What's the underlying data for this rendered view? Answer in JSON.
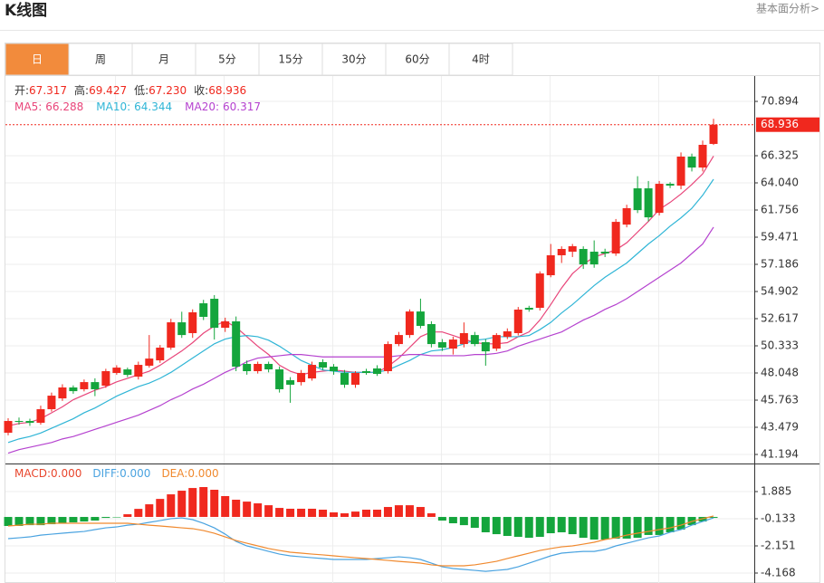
{
  "header": {
    "title": "K线图",
    "link": "基本面分析>"
  },
  "tabs": [
    "日",
    "周",
    "月",
    "5分",
    "15分",
    "30分",
    "60分",
    "4时"
  ],
  "active_tab": 0,
  "chart_data": [
    {
      "type": "candlestick",
      "up_color": "#f0281e",
      "down_color": "#14a53c",
      "readout": [
        {
          "name": "开:",
          "value": 67.317
        },
        {
          "name": "高:",
          "value": 69.427
        },
        {
          "name": "低:",
          "value": 67.23,
          "label": "67.230"
        },
        {
          "name": "收:",
          "value": 68.936
        }
      ],
      "ohlc": [
        [
          43.02,
          44.24,
          42.8,
          44.01
        ],
        [
          44.01,
          44.3,
          43.7,
          43.93
        ],
        [
          44.01,
          44.2,
          43.6,
          43.86
        ],
        [
          43.86,
          45.3,
          43.7,
          45.0
        ],
        [
          45.0,
          46.4,
          44.8,
          46.14
        ],
        [
          45.91,
          47.1,
          45.7,
          46.83
        ],
        [
          46.83,
          47.0,
          46.3,
          46.52
        ],
        [
          46.68,
          47.5,
          46.5,
          47.28
        ],
        [
          47.28,
          47.6,
          46.1,
          46.68
        ],
        [
          46.98,
          48.4,
          46.8,
          48.2
        ],
        [
          48.05,
          48.7,
          47.9,
          48.5
        ],
        [
          48.35,
          48.5,
          47.7,
          47.89
        ],
        [
          47.74,
          49.0,
          47.5,
          48.73
        ],
        [
          48.66,
          51.24,
          48.5,
          49.26
        ],
        [
          49.11,
          50.4,
          48.9,
          50.18
        ],
        [
          50.18,
          52.6,
          50.0,
          52.31
        ],
        [
          52.31,
          53.2,
          51.0,
          51.24
        ],
        [
          51.4,
          53.4,
          51.0,
          53.15
        ],
        [
          53.91,
          54.2,
          52.5,
          52.77
        ],
        [
          54.29,
          54.6,
          50.86,
          51.85
        ],
        [
          51.85,
          52.7,
          51.5,
          52.39
        ],
        [
          52.39,
          52.8,
          48.2,
          48.58
        ],
        [
          48.81,
          49.1,
          47.9,
          48.2
        ],
        [
          48.2,
          49.0,
          48.0,
          48.81
        ],
        [
          48.81,
          49.0,
          48.1,
          48.35
        ],
        [
          48.35,
          48.6,
          46.4,
          46.68
        ],
        [
          47.44,
          47.7,
          45.54,
          47.06
        ],
        [
          47.28,
          48.3,
          47.0,
          48.05
        ],
        [
          47.59,
          49.0,
          47.4,
          48.73
        ],
        [
          48.96,
          49.2,
          48.3,
          48.5
        ],
        [
          48.58,
          48.8,
          47.9,
          48.2
        ],
        [
          48.05,
          48.3,
          46.8,
          47.06
        ],
        [
          47.06,
          48.2,
          46.8,
          48.05
        ],
        [
          48.2,
          48.4,
          47.9,
          48.05
        ],
        [
          48.43,
          48.7,
          47.8,
          47.97
        ],
        [
          48.2,
          50.7,
          48.0,
          50.48
        ],
        [
          50.48,
          51.5,
          50.3,
          51.24
        ],
        [
          51.24,
          53.4,
          51.0,
          53.22
        ],
        [
          53.22,
          54.3,
          51.8,
          52.01
        ],
        [
          52.16,
          52.4,
          50.2,
          50.48
        ],
        [
          50.64,
          50.9,
          49.9,
          50.18
        ],
        [
          50.1,
          51.1,
          49.6,
          50.86
        ],
        [
          50.48,
          52.3,
          50.2,
          51.4
        ],
        [
          51.24,
          51.5,
          50.3,
          50.48
        ],
        [
          50.64,
          50.9,
          48.66,
          49.87
        ],
        [
          50.1,
          51.4,
          49.9,
          51.24
        ],
        [
          51.09,
          51.8,
          50.9,
          51.55
        ],
        [
          51.4,
          53.6,
          51.2,
          53.38
        ],
        [
          53.53,
          53.7,
          53.2,
          53.38
        ],
        [
          53.53,
          56.6,
          53.3,
          56.42
        ],
        [
          56.27,
          58.9,
          56.1,
          57.95
        ],
        [
          57.95,
          58.7,
          57.3,
          58.48
        ],
        [
          58.25,
          58.9,
          57.8,
          58.71
        ],
        [
          58.48,
          58.7,
          56.8,
          57.18
        ],
        [
          58.25,
          59.2,
          56.9,
          57.18
        ],
        [
          58.25,
          58.5,
          57.8,
          58.1
        ],
        [
          58.1,
          61.0,
          57.9,
          60.76
        ],
        [
          60.53,
          62.2,
          60.3,
          61.91
        ],
        [
          63.58,
          64.6,
          61.5,
          61.75
        ],
        [
          63.58,
          64.2,
          60.8,
          61.14
        ],
        [
          61.52,
          64.2,
          61.3,
          63.96
        ],
        [
          63.96,
          64.1,
          63.6,
          63.81
        ],
        [
          63.81,
          66.6,
          63.5,
          66.25
        ],
        [
          66.25,
          66.5,
          65.0,
          65.33
        ],
        [
          65.33,
          67.6,
          65.0,
          67.24
        ],
        [
          67.317,
          69.427,
          67.23,
          68.936
        ]
      ],
      "series": [
        {
          "name": "MA5:",
          "color": "#e8457a",
          "values": [
            43.6,
            43.8,
            43.9,
            44.2,
            44.7,
            45.2,
            45.8,
            46.2,
            46.6,
            46.9,
            47.3,
            47.6,
            47.9,
            48.2,
            48.7,
            49.3,
            49.9,
            50.6,
            51.4,
            52.0,
            52.4,
            51.9,
            51.1,
            50.3,
            49.6,
            48.7,
            48.2,
            47.9,
            48.1,
            48.2,
            48.3,
            48.2,
            48.1,
            48.1,
            48.1,
            48.6,
            49.3,
            50.2,
            51.1,
            51.5,
            51.5,
            51.2,
            50.9,
            50.6,
            50.5,
            50.5,
            50.6,
            51.1,
            51.5,
            52.5,
            53.8,
            55.2,
            56.4,
            57.2,
            57.8,
            58.1,
            58.4,
            59.0,
            59.9,
            60.8,
            61.8,
            62.4,
            63.1,
            63.9,
            64.8,
            66.288
          ]
        },
        {
          "name": "MA10:",
          "color": "#2fb5d6",
          "values": [
            42.2,
            42.5,
            42.7,
            43.0,
            43.4,
            43.8,
            44.2,
            44.7,
            45.1,
            45.6,
            46.1,
            46.5,
            46.9,
            47.2,
            47.6,
            48.1,
            48.7,
            49.3,
            49.9,
            50.5,
            50.9,
            51.1,
            51.2,
            51.1,
            50.8,
            50.3,
            49.7,
            49.1,
            48.7,
            48.3,
            48.2,
            48.1,
            48.1,
            48.1,
            48.1,
            48.3,
            48.7,
            49.1,
            49.6,
            49.9,
            50.0,
            50.2,
            50.5,
            50.8,
            50.9,
            51.1,
            51.1,
            51.1,
            51.2,
            51.7,
            52.3,
            53.1,
            53.8,
            54.6,
            55.4,
            56.1,
            56.7,
            57.3,
            58.1,
            58.9,
            59.6,
            60.4,
            61.1,
            61.9,
            63.0,
            64.344
          ]
        },
        {
          "name": "MA20:",
          "color": "#b542cf",
          "values": [
            41.3,
            41.6,
            41.8,
            42.0,
            42.2,
            42.5,
            42.7,
            43.0,
            43.3,
            43.6,
            43.9,
            44.2,
            44.5,
            44.9,
            45.3,
            45.8,
            46.2,
            46.7,
            47.1,
            47.6,
            48.1,
            48.5,
            49.0,
            49.3,
            49.4,
            49.5,
            49.6,
            49.6,
            49.5,
            49.4,
            49.4,
            49.4,
            49.4,
            49.4,
            49.4,
            49.4,
            49.5,
            49.6,
            49.6,
            49.5,
            49.5,
            49.5,
            49.5,
            49.6,
            49.6,
            49.7,
            49.9,
            50.3,
            50.6,
            50.9,
            51.2,
            51.5,
            52.0,
            52.5,
            52.9,
            53.4,
            53.8,
            54.3,
            54.9,
            55.5,
            56.1,
            56.7,
            57.3,
            58.1,
            58.9,
            60.317
          ]
        }
      ],
      "ylim": [
        40.433,
        73.026
      ],
      "yticks": [
        70.894,
        66.325,
        {
          "value": 64.04,
          "label": "64.040"
        },
        61.756,
        59.471,
        57.186,
        54.902,
        52.617,
        50.333,
        48.048,
        45.763,
        43.479,
        41.194
      ],
      "grid": true
    },
    {
      "type": "macd",
      "up_color": "#f0281e",
      "down_color": "#14a53c",
      "series": [
        {
          "name": "MACD:",
          "type": "bar",
          "color": "#e8452c",
          "readout": {
            "value": 0,
            "label": "0.000"
          },
          "values": [
            -0.67,
            -0.67,
            -0.61,
            -0.61,
            -0.54,
            -0.47,
            -0.4,
            -0.34,
            -0.27,
            -0.07,
            -0.03,
            0.2,
            0.6,
            0.94,
            1.34,
            1.68,
            1.95,
            2.15,
            2.22,
            2.02,
            1.55,
            1.28,
            1.14,
            1.01,
            0.87,
            0.67,
            0.61,
            0.61,
            0.61,
            0.54,
            0.34,
            0.27,
            0.4,
            0.54,
            0.54,
            0.74,
            0.87,
            0.87,
            0.74,
            0.27,
            -0.27,
            -0.47,
            -0.61,
            -0.81,
            -1.14,
            -1.28,
            -1.41,
            -1.48,
            -1.55,
            -1.48,
            -1.21,
            -1.14,
            -1.28,
            -1.55,
            -1.68,
            -1.68,
            -1.61,
            -1.61,
            -1.55,
            -1.34,
            -1.34,
            -1.14,
            -0.94,
            -0.61,
            -0.34,
            -0.07
          ]
        },
        {
          "name": "DIFF:",
          "type": "line",
          "color": "#4aa3e0",
          "readout": {
            "value": 0,
            "label": "0.000"
          },
          "values": [
            -1.61,
            -1.55,
            -1.48,
            -1.35,
            -1.28,
            -1.21,
            -1.14,
            -1.08,
            -0.94,
            -0.81,
            -0.74,
            -0.61,
            -0.54,
            -0.4,
            -0.27,
            -0.13,
            -0.07,
            -0.2,
            -0.47,
            -0.81,
            -1.28,
            -1.82,
            -2.15,
            -2.35,
            -2.56,
            -2.76,
            -2.89,
            -2.96,
            -3.03,
            -3.09,
            -3.16,
            -3.16,
            -3.16,
            -3.16,
            -3.09,
            -3.03,
            -2.96,
            -3.03,
            -3.16,
            -3.43,
            -3.7,
            -3.83,
            -3.9,
            -3.97,
            -4.04,
            -3.97,
            -3.9,
            -3.7,
            -3.43,
            -3.16,
            -2.89,
            -2.69,
            -2.62,
            -2.56,
            -2.56,
            -2.42,
            -2.15,
            -1.95,
            -1.75,
            -1.55,
            -1.41,
            -1.14,
            -0.94,
            -0.61,
            -0.34,
            -0.07
          ]
        },
        {
          "name": "DEA:",
          "type": "line",
          "color": "#f0892e",
          "readout": {
            "value": 0,
            "label": "0.000"
          },
          "values": [
            -0.67,
            -0.61,
            -0.54,
            -0.54,
            -0.47,
            -0.47,
            -0.47,
            -0.47,
            -0.47,
            -0.47,
            -0.47,
            -0.47,
            -0.54,
            -0.61,
            -0.67,
            -0.74,
            -0.81,
            -0.87,
            -1.01,
            -1.21,
            -1.48,
            -1.75,
            -1.95,
            -2.15,
            -2.35,
            -2.49,
            -2.62,
            -2.69,
            -2.76,
            -2.82,
            -2.89,
            -2.96,
            -3.03,
            -3.09,
            -3.16,
            -3.23,
            -3.3,
            -3.36,
            -3.43,
            -3.56,
            -3.63,
            -3.63,
            -3.63,
            -3.56,
            -3.43,
            -3.3,
            -3.09,
            -2.89,
            -2.69,
            -2.49,
            -2.35,
            -2.22,
            -2.15,
            -2.02,
            -1.88,
            -1.68,
            -1.55,
            -1.35,
            -1.21,
            -1.08,
            -0.94,
            -0.81,
            -0.61,
            -0.34,
            -0.13,
            0.07
          ]
        }
      ],
      "ylim": [
        -4.908,
        3.836
      ],
      "yticks": [
        1.885,
        -0.133,
        -2.151,
        -4.168
      ],
      "grid": true
    }
  ]
}
